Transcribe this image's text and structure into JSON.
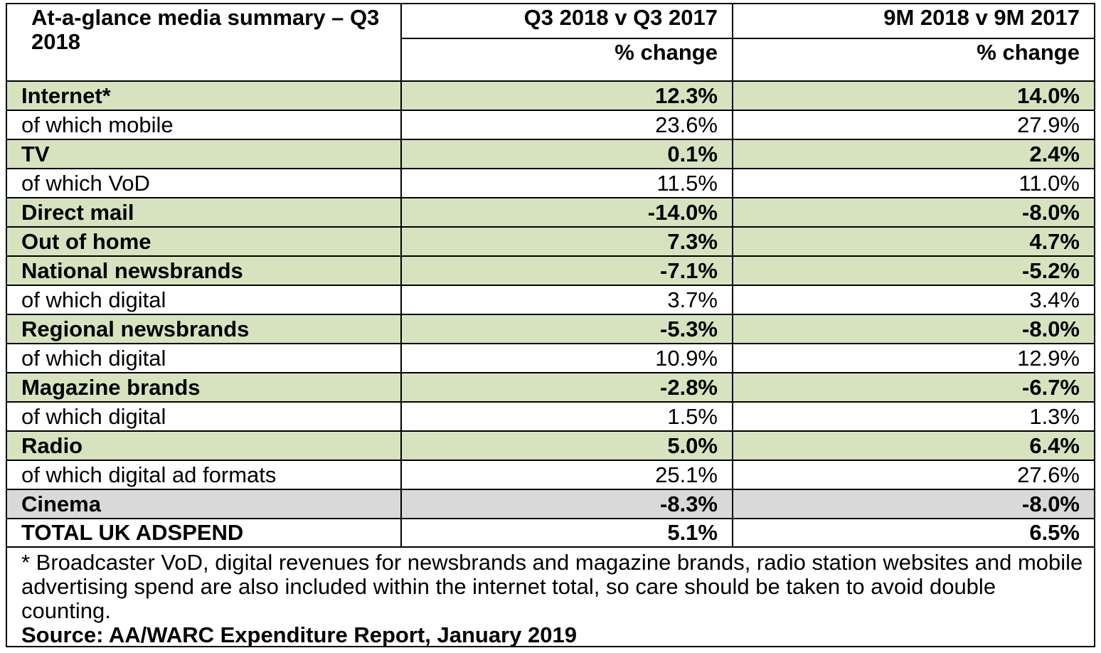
{
  "table": {
    "title": "At-a-glance media summary – Q3 2018",
    "col_q3": "Q3 2018 v Q3 2017",
    "col_9m": "9M 2018 v 9M 2017",
    "sub_q3": "% change",
    "sub_9m": "% change",
    "rows": [
      {
        "label": "Internet*",
        "q3": "12.3%",
        "nine_m": "14.0%",
        "style": "main"
      },
      {
        "label": "of which mobile",
        "q3": "23.6%",
        "nine_m": "27.9%",
        "style": "sub"
      },
      {
        "label": "TV",
        "q3": "0.1%",
        "nine_m": "2.4%",
        "style": "main"
      },
      {
        "label": "of which VoD",
        "q3": "11.5%",
        "nine_m": "11.0%",
        "style": "sub"
      },
      {
        "label": "Direct mail",
        "q3": "-14.0%",
        "nine_m": "-8.0%",
        "style": "main"
      },
      {
        "label": "Out of home",
        "q3": "7.3%",
        "nine_m": "4.7%",
        "style": "main"
      },
      {
        "label": "National newsbrands",
        "q3": "-7.1%",
        "nine_m": "-5.2%",
        "style": "main"
      },
      {
        "label": "of which digital",
        "q3": "3.7%",
        "nine_m": "3.4%",
        "style": "sub"
      },
      {
        "label": "Regional newsbrands",
        "q3": "-5.3%",
        "nine_m": "-8.0%",
        "style": "main"
      },
      {
        "label": "of which digital",
        "q3": "10.9%",
        "nine_m": "12.9%",
        "style": "sub"
      },
      {
        "label": "Magazine brands",
        "q3": "-2.8%",
        "nine_m": "-6.7%",
        "style": "main"
      },
      {
        "label": "of which digital",
        "q3": "1.5%",
        "nine_m": "1.3%",
        "style": "sub"
      },
      {
        "label": "Radio",
        "q3": "5.0%",
        "nine_m": "6.4%",
        "style": "main"
      },
      {
        "label": "of which digital ad formats",
        "q3": "25.1%",
        "nine_m": "27.6%",
        "style": "sub"
      },
      {
        "label": "Cinema",
        "q3": "-8.3%",
        "nine_m": "-8.0%",
        "style": "grey"
      },
      {
        "label": "TOTAL UK ADSPEND",
        "q3": "5.1%",
        "nine_m": "6.5%",
        "style": "total"
      }
    ]
  },
  "footnote": {
    "note": "* Broadcaster VoD, digital revenues for newsbrands and magazine brands, radio station websites and mobile advertising spend are also included within the internet total, so care should be taken to avoid double counting.",
    "source": "Source: AA/WARC Expenditure Report, January 2019"
  },
  "colors": {
    "main_row_bg": "#d7e3bf",
    "cinema_row_bg": "#d9d9d9",
    "border": "#000000"
  }
}
